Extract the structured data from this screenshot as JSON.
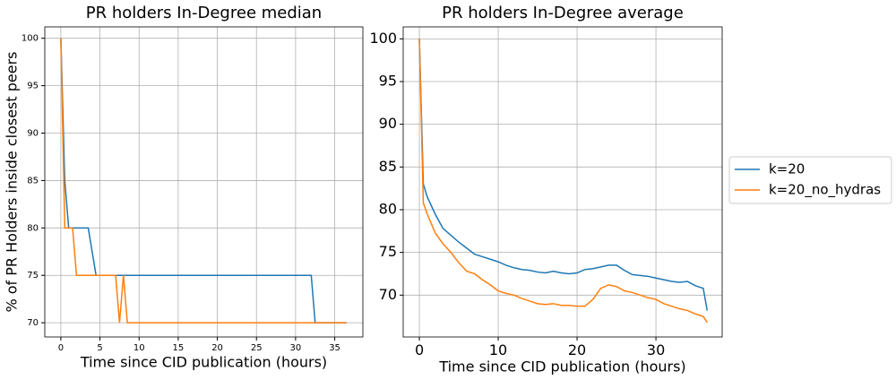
{
  "chart_data": [
    {
      "type": "line",
      "title": "PR holders In-Degree median",
      "x_label": "Time since CID publication (hours)",
      "y_label": "% of PR Holders inside closest peers",
      "xlim": [
        -2.05,
        38.6
      ],
      "ylim": [
        68.5,
        101.2
      ],
      "xticks": [
        0,
        5,
        10,
        15,
        20,
        25,
        30,
        35
      ],
      "yticks": [
        70,
        75,
        80,
        85,
        90,
        95,
        100
      ],
      "grid": true,
      "series": [
        {
          "color": "#1f77b4",
          "x": [
            0,
            0.5,
            1,
            3.5,
            4.5,
            32,
            32.5,
            36.5
          ],
          "values": [
            100,
            85,
            80,
            80,
            75,
            75,
            70,
            70
          ]
        },
        {
          "color": "#ff7f0e",
          "x": [
            0,
            0.5,
            1.5,
            2,
            7,
            7.5,
            8,
            8.5,
            36.5
          ],
          "values": [
            100,
            80,
            80,
            75,
            75,
            70,
            75,
            70,
            70
          ]
        }
      ]
    },
    {
      "type": "line",
      "title": "PR holders In-Degree average",
      "x_label": "Time since CID publication (hours)",
      "xlim": [
        -2.05,
        38.4
      ],
      "ylim": [
        65.1,
        101.4
      ],
      "xticks": [
        0,
        10,
        20,
        30
      ],
      "yticks": [
        70,
        75,
        80,
        85,
        90,
        95,
        100
      ],
      "grid": true,
      "legend": "outside-right",
      "x": [
        0,
        0.5,
        1,
        2,
        3,
        4,
        5,
        6,
        7,
        8,
        9,
        10,
        11,
        12,
        13,
        14,
        15,
        16,
        17,
        18,
        19,
        20,
        21,
        22,
        23,
        24,
        25,
        26,
        27,
        28,
        29,
        30,
        31,
        32,
        33,
        34,
        35,
        36,
        36.5
      ],
      "series": [
        {
          "name": "k=20",
          "color": "#1f77b4",
          "values": [
            100,
            83,
            81.5,
            79.5,
            77.8,
            77,
            76.2,
            75.5,
            74.8,
            74.5,
            74.2,
            73.9,
            73.5,
            73.2,
            73,
            72.9,
            72.7,
            72.6,
            72.8,
            72.6,
            72.5,
            72.6,
            73,
            73.1,
            73.3,
            73.5,
            73.5,
            72.9,
            72.4,
            72.3,
            72.2,
            72,
            71.8,
            71.6,
            71.5,
            71.6,
            71.1,
            70.8,
            68.2
          ]
        },
        {
          "name": "k=20_no_hydras",
          "color": "#ff7f0e",
          "values": [
            100,
            80.8,
            79.5,
            77.3,
            76,
            75,
            73.8,
            72.8,
            72.5,
            71.8,
            71.2,
            70.5,
            70.2,
            70,
            69.6,
            69.3,
            69,
            68.9,
            69,
            68.8,
            68.8,
            68.7,
            68.7,
            69.5,
            70.8,
            71.2,
            71,
            70.5,
            70.3,
            70,
            69.7,
            69.5,
            69,
            68.7,
            68.4,
            68.2,
            67.8,
            67.5,
            66.8
          ]
        }
      ]
    }
  ]
}
